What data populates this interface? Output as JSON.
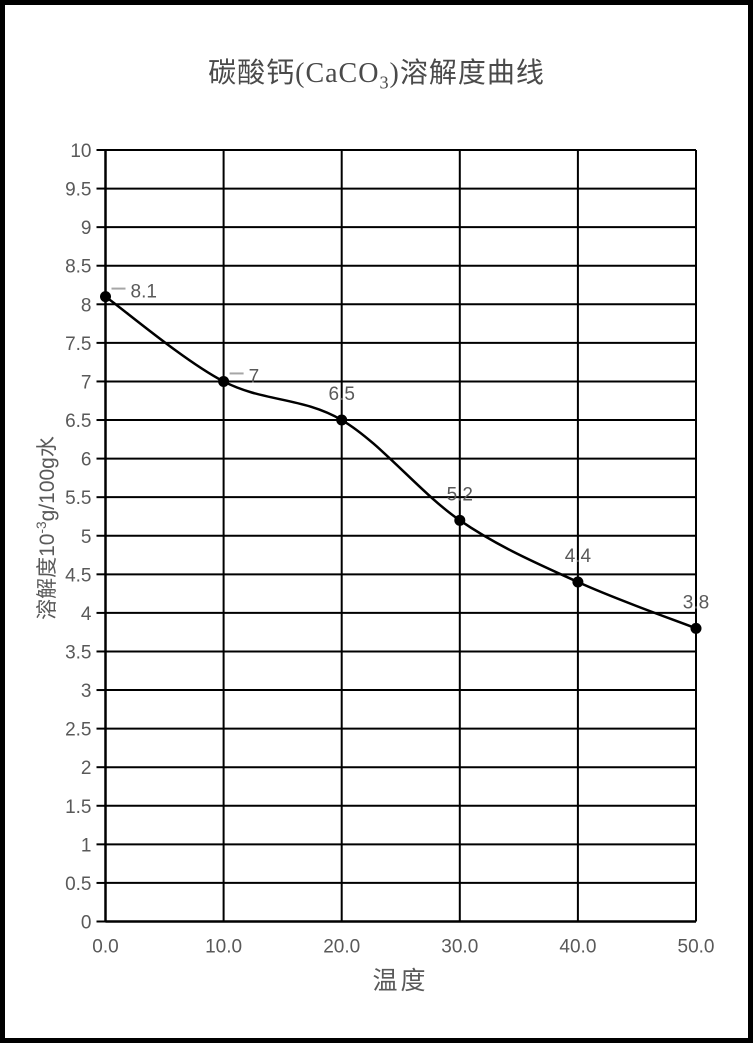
{
  "page": {
    "background": "#ffffff",
    "frame_color": "#000000"
  },
  "chart_data": {
    "type": "line",
    "title": {
      "prefix": "碳酸钙(CaCO",
      "sub": "3",
      "suffix": ")溶解度曲线"
    },
    "xlabel": "温度",
    "ylabel": {
      "prefix": "溶解度10",
      "sup": "-3",
      "suffix": "g/100g水"
    },
    "line_shape": "smooth",
    "grid": true,
    "legend": false,
    "x_min": 0,
    "x_max": 50,
    "y_min": 0,
    "y_max": 10,
    "y_step": 0.5,
    "x_ticks": [
      0,
      10,
      20,
      30,
      40,
      50
    ],
    "x_tick_labels": [
      "0.0",
      "10.0",
      "20.0",
      "30.0",
      "40.0",
      "50.0"
    ],
    "y_tick_labels": [
      "0",
      "0.5",
      "1",
      "1.5",
      "2",
      "2.5",
      "3",
      "3.5",
      "4",
      "4.5",
      "5",
      "5.5",
      "6",
      "6.5",
      "7",
      "7.5",
      "8",
      "8.5",
      "9",
      "9.5",
      "10"
    ],
    "series": [
      {
        "x": [
          0,
          10,
          20,
          30,
          40,
          50
        ],
        "y": [
          8.1,
          7,
          6.5,
          5.2,
          4.4,
          3.8
        ],
        "point_labels": [
          "8.1",
          "7",
          "6.5",
          "5.2",
          "4.4",
          "3.8"
        ],
        "label_placement": [
          "right",
          "right",
          "above",
          "above",
          "above",
          "above"
        ]
      }
    ],
    "colors": {
      "line": "#000000",
      "marker": "#000000",
      "grid": "#000000",
      "axis": "#000000",
      "text": "#595959",
      "leader": "#a6a6a6"
    }
  }
}
